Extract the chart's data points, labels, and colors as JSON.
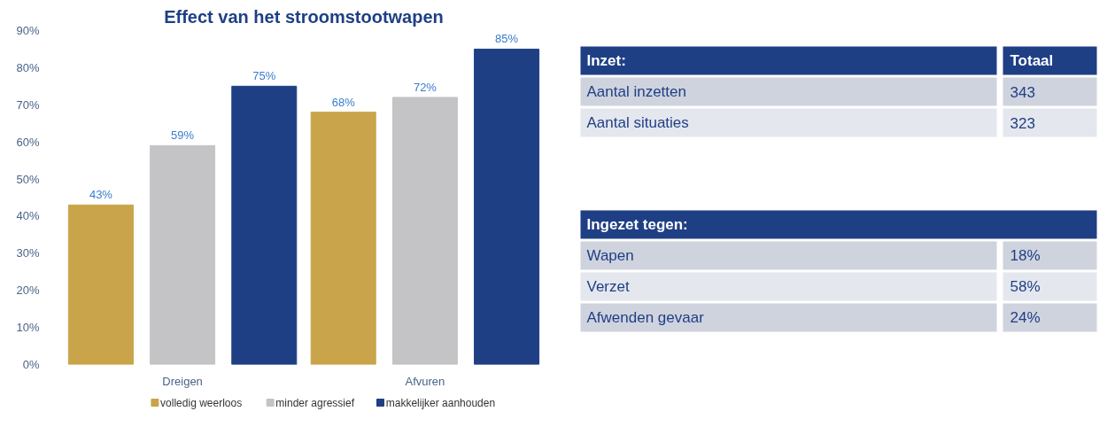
{
  "chart_data": [
    {
      "type": "bar",
      "title": "Effect van het stroomstootwapen",
      "categories": [
        "Dreigen",
        "Afvuren"
      ],
      "series": [
        {
          "name": "volledig weerloos",
          "color": "#c9a44a",
          "values": [
            43,
            68
          ],
          "value_labels": [
            "43%",
            "68%"
          ]
        },
        {
          "name": "minder agressief",
          "color": "#c4c4c6",
          "values": [
            59,
            72
          ],
          "value_labels": [
            "59%",
            "72%"
          ]
        },
        {
          "name": "makkelijker aanhouden",
          "color": "#1f3f85",
          "values": [
            75,
            85
          ],
          "value_labels": [
            "75%",
            "85%"
          ]
        }
      ],
      "ylim": [
        0,
        90
      ],
      "yticks": [
        {
          "value": 0,
          "label": "0%"
        },
        {
          "value": 10,
          "label": "10%"
        },
        {
          "value": 20,
          "label": "20%"
        },
        {
          "value": 30,
          "label": "30%"
        },
        {
          "value": 40,
          "label": "40%"
        },
        {
          "value": 50,
          "label": "50%"
        },
        {
          "value": 60,
          "label": "60%"
        },
        {
          "value": 70,
          "label": "70%"
        },
        {
          "value": 80,
          "label": "80%"
        },
        {
          "value": 90,
          "label": "90%"
        }
      ],
      "legend": "bottom",
      "grid": false
    },
    {
      "type": "other",
      "annotations": [
        "Inzet:",
        "Totaal",
        "Aantal inzetten",
        "343",
        "Aantal situaties",
        "323"
      ]
    },
    {
      "type": "other",
      "annotations": [
        "Ingezet tegen:",
        "Wapen",
        "18%",
        "Verzet",
        "58%",
        "Afwenden gevaar",
        "24%"
      ]
    }
  ]
}
